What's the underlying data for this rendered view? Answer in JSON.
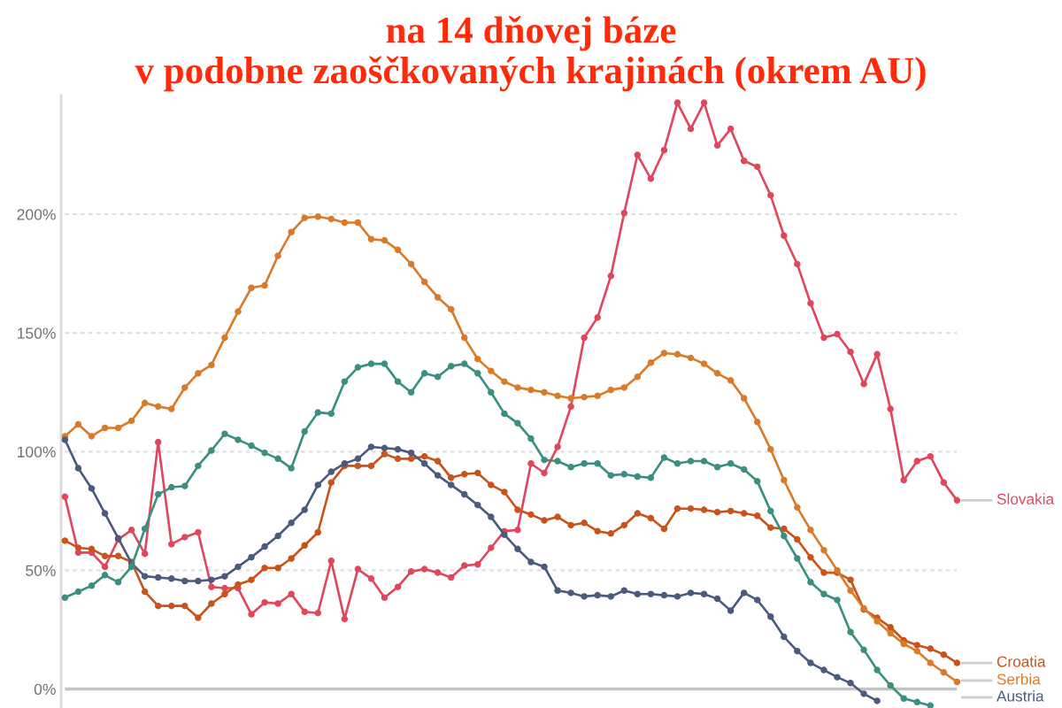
{
  "chart_data": {
    "type": "line",
    "title": "na 14 dňovej báze\nv podobne zaoščkovaných krajinách (okrem AU)",
    "categories": [
      null,
      null,
      null,
      null,
      null,
      null,
      null,
      null,
      null,
      null,
      null,
      null,
      null,
      null,
      null,
      null,
      null,
      null,
      null,
      null,
      null,
      null,
      null,
      null,
      null,
      null,
      null,
      null,
      null,
      null,
      null,
      null,
      null,
      null,
      null,
      null,
      null,
      null,
      null,
      null,
      null,
      null,
      null,
      null,
      null,
      null,
      null,
      null,
      null,
      null,
      null,
      null,
      null,
      null,
      null,
      null,
      null,
      null,
      null,
      null,
      null,
      null,
      null,
      null,
      null,
      null,
      null,
      null
    ],
    "series": [
      {
        "name": "Slovakia",
        "color": "#e0475c",
        "values": [
          81,
          57.5,
          57.5,
          51.5,
          63,
          67,
          57,
          104,
          61,
          64,
          66,
          43,
          42.5,
          42.5,
          31.5,
          36.5,
          36,
          40,
          32.5,
          32,
          54,
          29.5,
          50.5,
          46.5,
          38.5,
          43,
          49.5,
          50.5,
          49,
          47,
          52,
          52.5,
          59.5,
          66.5,
          67,
          95,
          91,
          102,
          119,
          148,
          156.5,
          174,
          200.5,
          225,
          215,
          227,
          247,
          236,
          247,
          229,
          236,
          222.5,
          220,
          208,
          191,
          179,
          162.5,
          148,
          149.5,
          142,
          128.5,
          141,
          118,
          88,
          96,
          98,
          87,
          79.5
        ]
      },
      {
        "name": "Croatia",
        "color": "#c9541a",
        "values": [
          62.5,
          59.5,
          59,
          56,
          56,
          53.5,
          41,
          35,
          35,
          35,
          30,
          36,
          40,
          44,
          46,
          51,
          51,
          55,
          60.5,
          66,
          87,
          94,
          94,
          94,
          99,
          97,
          97,
          98,
          96,
          89,
          90.5,
          91,
          86,
          83,
          75.5,
          73.5,
          71,
          72.5,
          69,
          70,
          66.5,
          65.5,
          69,
          74,
          72,
          67.5,
          76,
          76,
          75.5,
          74.5,
          75,
          74,
          73,
          68,
          67.5,
          63,
          55.5,
          49,
          49,
          46,
          33.5,
          30,
          26,
          20.5,
          18.5,
          17,
          14.5,
          11
        ]
      },
      {
        "name": "Serbia",
        "color": "#d97b29",
        "values": [
          106.5,
          111.5,
          106.5,
          110,
          110,
          113,
          120.5,
          119,
          118,
          127,
          133,
          136.5,
          148,
          159,
          169,
          170,
          182.5,
          192.5,
          198.5,
          199,
          198,
          196.5,
          196.5,
          189.5,
          189,
          185,
          179,
          171.5,
          165,
          160,
          148,
          139,
          134,
          129.5,
          127,
          126,
          125,
          123.5,
          122.5,
          123,
          123.5,
          126,
          127,
          131.5,
          137.5,
          141.5,
          141,
          139.5,
          137,
          133,
          130,
          122.5,
          112.5,
          101,
          88,
          76.5,
          67,
          58.5,
          50,
          41.5,
          34,
          28.5,
          23.5,
          19,
          16,
          11,
          7,
          3
        ]
      },
      {
        "name": "Austria",
        "color": "#4b5a7d",
        "values": [
          105,
          93,
          84.5,
          74,
          63.5,
          53,
          47.5,
          47,
          46.5,
          45.5,
          45.5,
          46,
          47.5,
          51.5,
          55.5,
          60,
          64.5,
          70,
          75.5,
          86,
          91.5,
          95,
          97,
          102,
          101.5,
          101,
          99.5,
          95,
          90,
          86,
          82,
          77.5,
          72.5,
          65,
          59,
          53.5,
          51.5,
          41.5,
          40.5,
          39,
          39.5,
          39,
          41.5,
          40,
          40,
          39.5,
          39,
          40.5,
          40,
          38,
          33,
          40.5,
          37.5,
          30.5,
          22,
          16,
          11,
          8,
          5,
          2.5,
          -2,
          -5,
          null,
          null,
          null,
          null,
          null,
          null
        ]
      },
      {
        "color": "#3b8f7e",
        "values": [
          38.5,
          41,
          43.5,
          48,
          45,
          51.5,
          67.5,
          82,
          85,
          85.5,
          94,
          100.5,
          107.5,
          105,
          102.5,
          99.5,
          97,
          93,
          108.5,
          116.5,
          116,
          129.5,
          135.5,
          137,
          137,
          129.5,
          125,
          133,
          131.5,
          136,
          137,
          133,
          125,
          116,
          112,
          105.5,
          96.5,
          96,
          93.5,
          95,
          95,
          90,
          90.5,
          89.5,
          89,
          97.5,
          95,
          96,
          96,
          93.5,
          95,
          92.5,
          87.5,
          75,
          64.5,
          55,
          45,
          40,
          37.5,
          24,
          16.5,
          8,
          1.5,
          -4,
          -5.5,
          -7,
          null,
          null
        ]
      }
    ],
    "ylim": [
      -8,
      250
    ],
    "yticks": [
      {
        "value": 0,
        "label": "0%"
      },
      {
        "value": 50,
        "label": "50%"
      },
      {
        "value": 100,
        "label": "100%"
      },
      {
        "value": 150,
        "label": "150%"
      },
      {
        "value": 200,
        "label": "200%"
      }
    ],
    "ref_lines": [
      {
        "axis": "y",
        "value": 0,
        "color": "#c4c4c4",
        "line_style": "solid"
      }
    ],
    "grid": "y",
    "marker": "circle",
    "line_style": "solid",
    "tick_labels": "y"
  }
}
